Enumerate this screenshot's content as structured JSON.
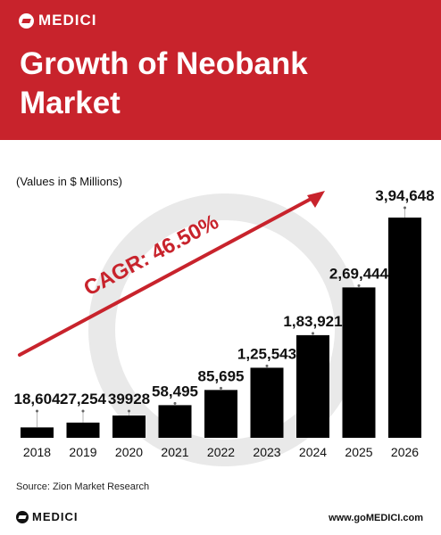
{
  "brand": {
    "name": "MEDICI",
    "icon": "medici-logo-icon",
    "accent": "#c8232c"
  },
  "title": "Growth of Neobank Market",
  "units_note": "(Values in $ Millions)",
  "annotation": {
    "text": "CAGR: 46.50%",
    "color": "#c8232c"
  },
  "source": "Source: Zion Market Research",
  "footer": {
    "brand": "MEDICI",
    "website": "www.goMEDICI.com"
  },
  "chart_data": {
    "type": "bar",
    "categories": [
      "2018",
      "2019",
      "2020",
      "2021",
      "2022",
      "2023",
      "2024",
      "2025",
      "2026"
    ],
    "values": [
      18604,
      27254,
      39928,
      58495,
      85695,
      125543,
      183921,
      269444,
      394648
    ],
    "value_labels": [
      "18,604",
      "27,254",
      "39928",
      "58,495",
      "85,695",
      "1,25,543",
      "1,83,921",
      "2,69,444",
      "3,94,648"
    ],
    "ylabel": "",
    "xlabel": "",
    "bar_color": "#000000",
    "grid": false,
    "legend": "none"
  }
}
